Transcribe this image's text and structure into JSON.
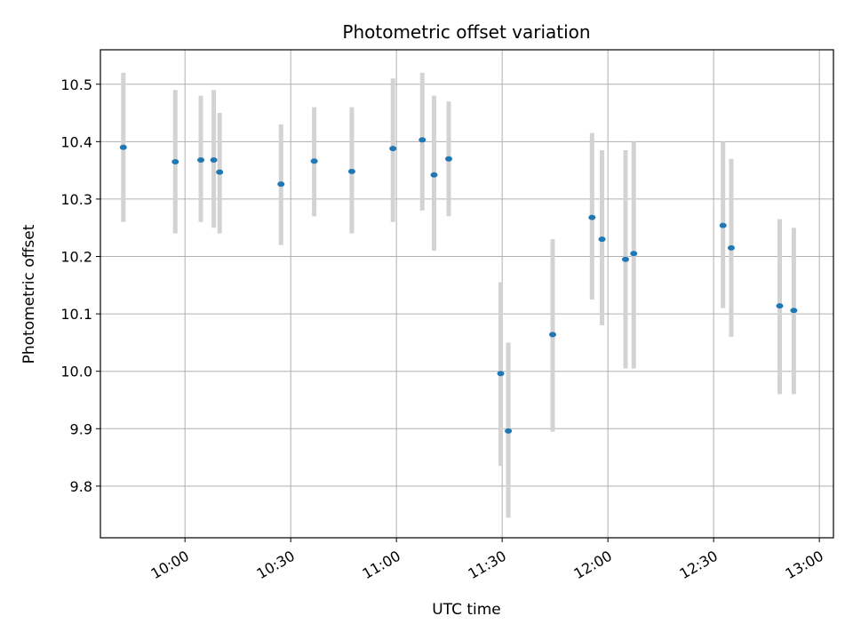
{
  "chart_data": {
    "type": "scatter",
    "title": "Photometric offset variation",
    "xlabel": "UTC time",
    "ylabel": "Photometric offset",
    "xlim": [
      "09:36",
      "13:04"
    ],
    "ylim": [
      9.71,
      10.56
    ],
    "grid": true,
    "x_ticks": [
      "10:00",
      "10:30",
      "11:00",
      "11:30",
      "12:00",
      "12:30",
      "13:00"
    ],
    "y_ticks": [
      9.8,
      9.9,
      10.0,
      10.1,
      10.2,
      10.3,
      10.4,
      10.5
    ],
    "y_tick_labels": [
      "9.8",
      "9.9",
      "10.0",
      "10.1",
      "10.2",
      "10.3",
      "10.4",
      "10.5"
    ],
    "point_color": "#1f77b4",
    "errorbar_color": "#d3d3d3",
    "points": [
      {
        "x": "09:42:30",
        "y": 10.39,
        "ylow": 10.26,
        "yhigh": 10.52
      },
      {
        "x": "09:57:15",
        "y": 10.365,
        "ylow": 10.24,
        "yhigh": 10.49
      },
      {
        "x": "10:04:30",
        "y": 10.368,
        "ylow": 10.26,
        "yhigh": 10.48
      },
      {
        "x": "10:08:10",
        "y": 10.368,
        "ylow": 10.25,
        "yhigh": 10.49
      },
      {
        "x": "10:09:50",
        "y": 10.347,
        "ylow": 10.24,
        "yhigh": 10.45
      },
      {
        "x": "10:27:15",
        "y": 10.326,
        "ylow": 10.22,
        "yhigh": 10.43
      },
      {
        "x": "10:36:40",
        "y": 10.366,
        "ylow": 10.27,
        "yhigh": 10.46
      },
      {
        "x": "10:47:20",
        "y": 10.348,
        "ylow": 10.24,
        "yhigh": 10.46
      },
      {
        "x": "10:59:00",
        "y": 10.388,
        "ylow": 10.26,
        "yhigh": 10.51
      },
      {
        "x": "11:07:20",
        "y": 10.403,
        "ylow": 10.28,
        "yhigh": 10.52
      },
      {
        "x": "11:10:40",
        "y": 10.342,
        "ylow": 10.21,
        "yhigh": 10.48
      },
      {
        "x": "11:14:50",
        "y": 10.37,
        "ylow": 10.27,
        "yhigh": 10.47
      },
      {
        "x": "11:29:35",
        "y": 9.996,
        "ylow": 9.835,
        "yhigh": 10.155
      },
      {
        "x": "11:31:45",
        "y": 9.896,
        "ylow": 9.745,
        "yhigh": 10.05
      },
      {
        "x": "11:44:20",
        "y": 10.064,
        "ylow": 9.895,
        "yhigh": 10.23
      },
      {
        "x": "11:55:30",
        "y": 10.268,
        "ylow": 10.125,
        "yhigh": 10.415
      },
      {
        "x": "11:58:20",
        "y": 10.23,
        "ylow": 10.08,
        "yhigh": 10.385
      },
      {
        "x": "12:05:00",
        "y": 10.195,
        "ylow": 10.005,
        "yhigh": 10.385
      },
      {
        "x": "12:07:20",
        "y": 10.205,
        "ylow": 10.005,
        "yhigh": 10.4
      },
      {
        "x": "12:32:40",
        "y": 10.254,
        "ylow": 10.11,
        "yhigh": 10.4
      },
      {
        "x": "12:35:00",
        "y": 10.215,
        "ylow": 10.06,
        "yhigh": 10.37
      },
      {
        "x": "12:48:45",
        "y": 10.114,
        "ylow": 9.96,
        "yhigh": 10.265
      },
      {
        "x": "12:52:45",
        "y": 10.106,
        "ylow": 9.96,
        "yhigh": 10.25
      }
    ]
  }
}
